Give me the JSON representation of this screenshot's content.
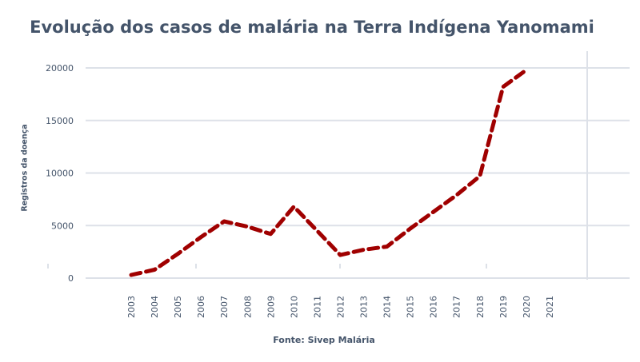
{
  "chart_data": {
    "type": "line",
    "title": "Evolução dos casos de malária na Terra Indígena  Yanomami",
    "xlabel": "",
    "ylabel": "Registros da doença",
    "source": "Fonte: Sivep Malária",
    "categories": [
      "2003",
      "2004",
      "2005",
      "2006",
      "2007",
      "2008",
      "2009",
      "2010",
      "2011",
      "2012",
      "2013",
      "2014",
      "2015",
      "2016",
      "2017",
      "2018",
      "2019",
      "2020",
      "2021"
    ],
    "values": [
      300,
      800,
      2300,
      3900,
      5400,
      4900,
      4200,
      6800,
      4500,
      2200,
      2700,
      3000,
      4700,
      6300,
      7900,
      9700,
      18200,
      19800,
      null
    ],
    "yticks": [
      "0",
      "5000",
      "10000",
      "15000",
      "20000"
    ],
    "ylim": [
      0,
      20000
    ],
    "grid": "horizontal",
    "line_style": "dashed",
    "colors": {
      "line": "#a00000",
      "title": "#44546a",
      "grid": "#dde1e8"
    }
  }
}
